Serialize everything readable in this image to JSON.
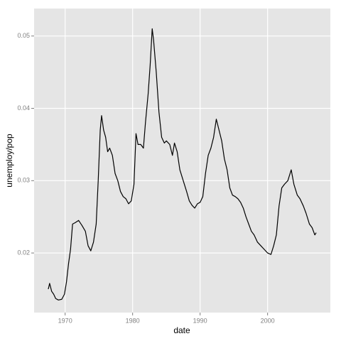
{
  "chart_data": {
    "type": "line",
    "xlabel": "date",
    "ylabel": "unemploy/pop",
    "x": [
      1967.5,
      1967.7,
      1968.0,
      1968.3,
      1968.6,
      1969.0,
      1969.5,
      1969.9,
      1970.2,
      1970.5,
      1970.8,
      1971.1,
      1971.5,
      1972.0,
      1972.5,
      1973.0,
      1973.4,
      1973.8,
      1974.2,
      1974.6,
      1974.9,
      1975.2,
      1975.4,
      1975.7,
      1976.0,
      1976.3,
      1976.6,
      1977.0,
      1977.4,
      1977.8,
      1978.2,
      1978.6,
      1979.0,
      1979.4,
      1979.8,
      1980.2,
      1980.5,
      1980.8,
      1981.2,
      1981.6,
      1981.9,
      1982.3,
      1982.6,
      1982.9,
      1983.1,
      1983.5,
      1983.9,
      1984.3,
      1984.7,
      1985.0,
      1985.5,
      1985.9,
      1986.2,
      1986.6,
      1987.0,
      1987.5,
      1988.0,
      1988.4,
      1988.8,
      1989.2,
      1989.6,
      1990.0,
      1990.4,
      1990.8,
      1991.2,
      1991.6,
      1992.0,
      1992.4,
      1992.8,
      1993.2,
      1993.6,
      1994.0,
      1994.4,
      1994.8,
      1995.2,
      1995.6,
      1996.0,
      1996.4,
      1996.8,
      1997.2,
      1997.6,
      1998.0,
      1998.5,
      1999.0,
      1999.5,
      2000.0,
      2000.5,
      2000.9,
      2001.3,
      2001.7,
      2002.1,
      2002.5,
      2003.0,
      2003.5,
      2003.9,
      2004.4,
      2004.8,
      2005.3,
      2005.7,
      2006.2,
      2006.6,
      2007.0,
      2007.2
    ],
    "series": [
      {
        "name": "unemploy/pop",
        "color": "#000000",
        "values": [
          0.015,
          0.0158,
          0.0147,
          0.0143,
          0.0137,
          0.0135,
          0.0136,
          0.0143,
          0.016,
          0.0185,
          0.0205,
          0.024,
          0.0242,
          0.0245,
          0.0238,
          0.023,
          0.021,
          0.0203,
          0.0215,
          0.024,
          0.03,
          0.037,
          0.039,
          0.037,
          0.036,
          0.034,
          0.0345,
          0.0335,
          0.031,
          0.03,
          0.0285,
          0.0278,
          0.0275,
          0.0268,
          0.0272,
          0.0295,
          0.0365,
          0.035,
          0.035,
          0.0345,
          0.038,
          0.042,
          0.046,
          0.051,
          0.0495,
          0.045,
          0.0395,
          0.036,
          0.0352,
          0.0355,
          0.035,
          0.0335,
          0.0352,
          0.034,
          0.0315,
          0.03,
          0.0285,
          0.0272,
          0.0266,
          0.0262,
          0.0268,
          0.027,
          0.0278,
          0.031,
          0.0335,
          0.0345,
          0.036,
          0.0385,
          0.037,
          0.0355,
          0.033,
          0.0315,
          0.029,
          0.028,
          0.0278,
          0.0275,
          0.027,
          0.0262,
          0.025,
          0.024,
          0.023,
          0.0225,
          0.0215,
          0.021,
          0.0205,
          0.02,
          0.0198,
          0.021,
          0.0225,
          0.0265,
          0.029,
          0.0295,
          0.03,
          0.0315,
          0.0295,
          0.028,
          0.0275,
          0.0265,
          0.0255,
          0.024,
          0.0235,
          0.0225,
          0.0228
        ]
      }
    ],
    "xlim": [
      1965.4,
      2009.3
    ],
    "xticks": [
      1970,
      1980,
      1990,
      2000
    ],
    "ylim": [
      0.01176,
      0.0538
    ],
    "yticks": [
      0.02,
      0.03,
      0.04,
      0.05
    ],
    "grid": true
  }
}
